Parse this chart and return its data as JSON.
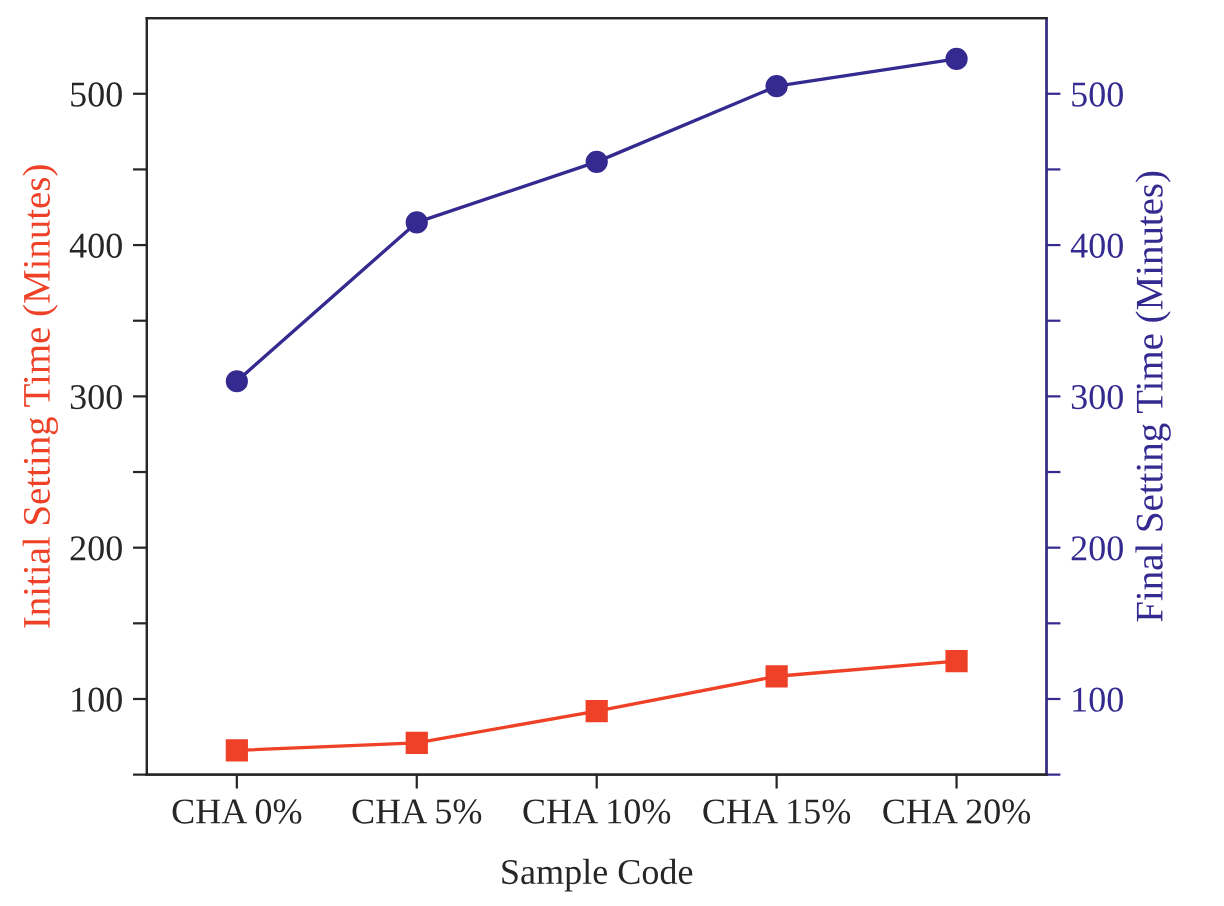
{
  "chart_data": {
    "type": "line",
    "xlabel": "Sample Code",
    "ylabel": "Initial Setting Time (Minutes)",
    "y2label": "Final Setting Time (Minutes)",
    "categories": [
      "CHA 0%",
      "CHA 5%",
      "CHA 10%",
      "CHA 15%",
      "CHA 20%"
    ],
    "series": [
      {
        "color": "#ee4127",
        "values": [
          66,
          71,
          92,
          115,
          125
        ],
        "marker": "square"
      },
      {
        "color": "#352a8f",
        "values": [
          310,
          415,
          455,
          505,
          523
        ],
        "marker": "circle",
        "axis": "y2"
      }
    ],
    "ylim": [
      50,
      550
    ],
    "yticks": [
      {
        "value": 50,
        "label": null
      },
      100,
      {
        "value": 150,
        "label": null
      },
      200,
      {
        "value": 250,
        "label": null
      },
      300,
      {
        "value": 350,
        "label": null
      },
      400,
      {
        "value": 450,
        "label": null
      },
      500
    ],
    "y2lim": [
      50,
      550
    ],
    "y2ticks": [
      {
        "value": 50,
        "label": null
      },
      100,
      {
        "value": 150,
        "label": null
      },
      200,
      {
        "value": 250,
        "label": null
      },
      300,
      {
        "value": 350,
        "label": null
      },
      400,
      {
        "value": 450,
        "label": null
      },
      500
    ],
    "grid": false,
    "line_style": "solid"
  }
}
